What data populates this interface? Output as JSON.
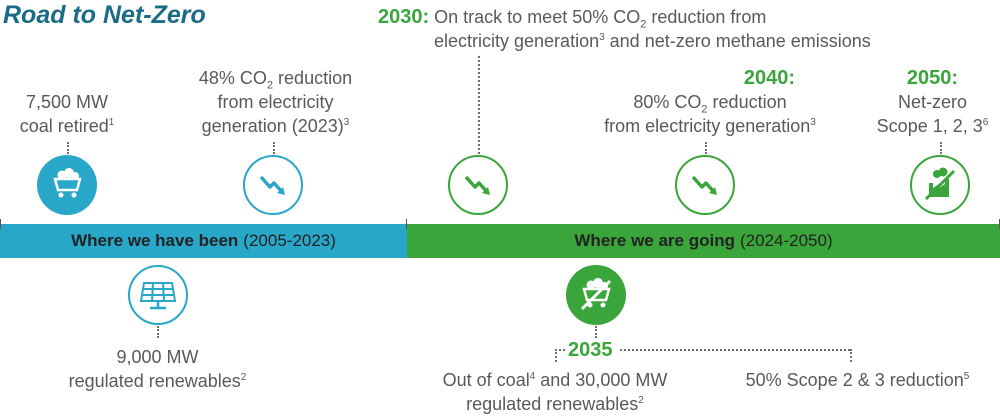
{
  "title": "Road to Net-Zero",
  "bars": {
    "past_bold": "Where we have been",
    "past_range": "(2005-2023)",
    "future_bold": "Where we are going",
    "future_range": "(2024-2050)"
  },
  "past": {
    "coal_line1": "7,500 MW",
    "coal_line2": "coal retired",
    "coal_note": "1",
    "co2_line1_a": "48% CO",
    "co2_line1_sub": "2",
    "co2_line1_b": " reduction",
    "co2_line2": "from electricity",
    "co2_line3": "generation (2023)",
    "co2_note": "3",
    "renew_line1": "9,000 MW",
    "renew_line2": "regulated renewables",
    "renew_note": "2"
  },
  "future": {
    "y2030": "2030:",
    "y2030_line1_a": " On track to meet 50% CO",
    "y2030_line1_sub": "2",
    "y2030_line1_b": " reduction from",
    "y2030_line2_a": "electricity generation",
    "y2030_line2_note": "3",
    "y2030_line2_b": " and net-zero methane emissions",
    "y2040": "2040:",
    "y2040_line1_a": "80% CO",
    "y2040_line1_sub": "2",
    "y2040_line1_b": " reduction",
    "y2040_line2": "from electricity generation",
    "y2040_note": "3",
    "y2050": "2050:",
    "y2050_line1": "Net-zero",
    "y2050_line2": "Scope 1, 2, 3",
    "y2050_note": "6",
    "y2035": "2035",
    "y2035_left_line1_a": "Out of coal",
    "y2035_left_note1": "4",
    "y2035_left_line1_b": " and 30,000 MW",
    "y2035_left_line2": "regulated renewables",
    "y2035_left_note2": "2",
    "y2035_right": "50% Scope 2 & 3 reduction",
    "y2035_right_note": "5"
  },
  "colors": {
    "past": "#29a7c8",
    "future": "#3aa53b",
    "title": "#1a6b86"
  }
}
